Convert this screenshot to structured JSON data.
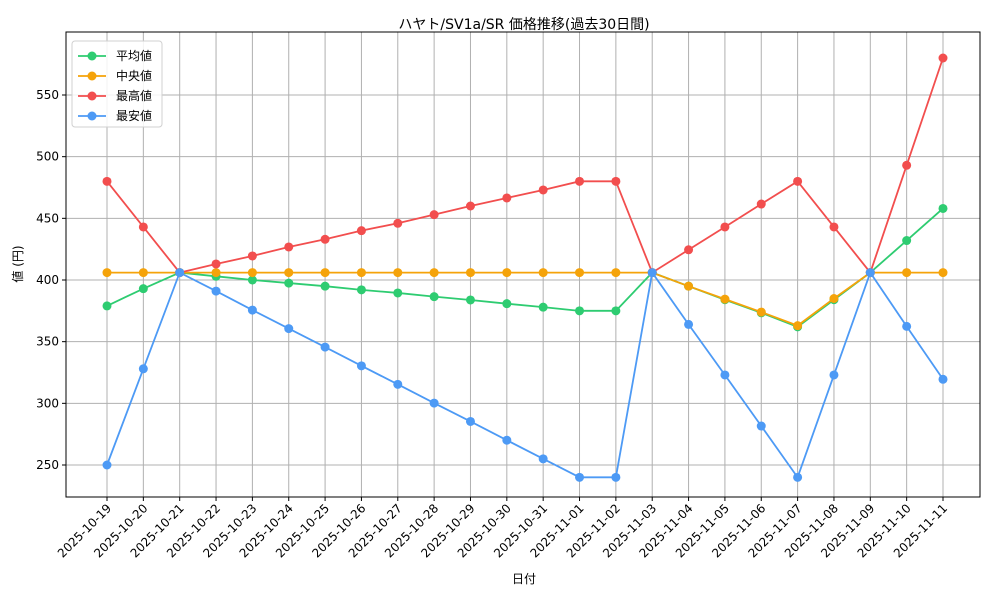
{
  "chart_data": {
    "type": "line",
    "title": "ハヤト/SV1a/SR 価格推移(過去30日間)",
    "xlabel": "日付",
    "ylabel": "値 (円)",
    "ylim": [
      223,
      595
    ],
    "yticks": [
      250,
      300,
      350,
      400,
      450,
      500,
      550
    ],
    "grid": true,
    "legend_position": "upper left",
    "categories": [
      "2025-10-19",
      "2025-10-20",
      "2025-10-21",
      "2025-10-22",
      "2025-10-23",
      "2025-10-24",
      "2025-10-25",
      "2025-10-26",
      "2025-10-27",
      "2025-10-28",
      "2025-10-29",
      "2025-10-30",
      "2025-10-31",
      "2025-11-01",
      "2025-11-02",
      "2025-11-03",
      "2025-11-04",
      "2025-11-05",
      "2025-11-06",
      "2025-11-07",
      "2025-11-08",
      "2025-11-09",
      "2025-11-10",
      "2025-11-11"
    ],
    "series": [
      {
        "name": "平均値",
        "color": "#2ecc71",
        "values": [
          379,
          393,
          406,
          403,
          400,
          397.5,
          395,
          392,
          389.5,
          386.5,
          383.8,
          380.8,
          378,
          375,
          375,
          406,
          395,
          384,
          373.4,
          362,
          384,
          406,
          432,
          458
        ]
      },
      {
        "name": "中央値",
        "color": "#f5a30a",
        "values": [
          406,
          406,
          406,
          406,
          406,
          406,
          406,
          406,
          406,
          406,
          406,
          406,
          406,
          406,
          406,
          406,
          395,
          384.5,
          374,
          363,
          385,
          406,
          406,
          406
        ]
      },
      {
        "name": "最高値",
        "color": "#f24e4e",
        "values": [
          480,
          443,
          406,
          413,
          419.5,
          426.8,
          433,
          440,
          446,
          453,
          460,
          466.5,
          473,
          480,
          480,
          406,
          424.5,
          443,
          461.6,
          480,
          443,
          406,
          493,
          580
        ]
      },
      {
        "name": "最安値",
        "color": "#4d9af5",
        "values": [
          250,
          328,
          406,
          391,
          375.6,
          360.6,
          345.6,
          330.4,
          315.4,
          300.2,
          285.3,
          270.1,
          255,
          240,
          240,
          406,
          364,
          323,
          281.6,
          240,
          323,
          406,
          362.4,
          319.5
        ]
      }
    ]
  }
}
